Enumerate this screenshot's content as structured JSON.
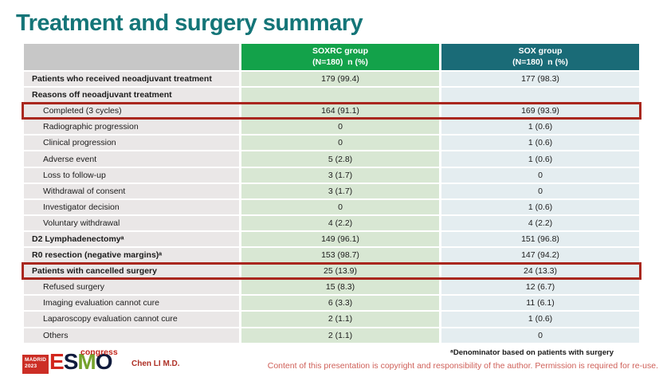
{
  "slide": {
    "title": "Treatment and surgery summary"
  },
  "colors": {
    "title_teal": "#147578",
    "header_green": "#13a24a",
    "header_teal": "#1a6b77",
    "soxrc_cell_green": "#d8e7d3",
    "sox_cell_blue": "#e4edf0",
    "highlight_red": "#a9271e",
    "copyright_red": "#cf6059"
  },
  "table": {
    "columns": [
      {
        "label": "SOXRC group",
        "sublabel": "(N=180)  n (%)"
      },
      {
        "label": "SOX group",
        "sublabel": "(N=180)  n (%)"
      }
    ],
    "rows": [
      {
        "label": "Patients who received neoadjuvant treatment",
        "soxrc": "179 (99.4)",
        "sox": "177 (98.3)",
        "bold": true,
        "indent": false,
        "highlight": false
      },
      {
        "label": "Reasons off neoadjuvant treatment",
        "soxrc": "",
        "sox": "",
        "bold": true,
        "indent": false,
        "highlight": false
      },
      {
        "label": "Completed (3 cycles)",
        "soxrc": "164 (91.1)",
        "sox": "169 (93.9)",
        "bold": false,
        "indent": true,
        "highlight": true
      },
      {
        "label": "Radiographic progression",
        "soxrc": "0",
        "sox": "1 (0.6)",
        "bold": false,
        "indent": true,
        "highlight": false
      },
      {
        "label": "Clinical progression",
        "soxrc": "0",
        "sox": "1 (0.6)",
        "bold": false,
        "indent": true,
        "highlight": false
      },
      {
        "label": "Adverse event",
        "soxrc": "5 (2.8)",
        "sox": "1 (0.6)",
        "bold": false,
        "indent": true,
        "highlight": false
      },
      {
        "label": "Loss to follow-up",
        "soxrc": "3 (1.7)",
        "sox": "0",
        "bold": false,
        "indent": true,
        "highlight": false
      },
      {
        "label": "Withdrawal of consent",
        "soxrc": "3 (1.7)",
        "sox": "0",
        "bold": false,
        "indent": true,
        "highlight": false
      },
      {
        "label": "Investigator decision",
        "soxrc": "0",
        "sox": "1 (0.6)",
        "bold": false,
        "indent": true,
        "highlight": false
      },
      {
        "label": "Voluntary withdrawal",
        "soxrc": "4 (2.2)",
        "sox": "4 (2.2)",
        "bold": false,
        "indent": true,
        "highlight": false
      },
      {
        "label": "D2 Lymphadenectomyᵃ",
        "soxrc": "149 (96.1)",
        "sox": "151 (96.8)",
        "bold": true,
        "indent": false,
        "highlight": false
      },
      {
        "label": "R0 resection (negative margins)ᵃ",
        "soxrc": "153 (98.7)",
        "sox": "147 (94.2)",
        "bold": true,
        "indent": false,
        "highlight": false
      },
      {
        "label": "Patients with cancelled surgery",
        "soxrc": "25 (13.9)",
        "sox": "24 (13.3)",
        "bold": true,
        "indent": false,
        "highlight": true
      },
      {
        "label": "Refused surgery",
        "soxrc": "15 (8.3)",
        "sox": "12 (6.7)",
        "bold": false,
        "indent": true,
        "highlight": false
      },
      {
        "label": "Imaging evaluation cannot cure",
        "soxrc": "6 (3.3)",
        "sox": "11 (6.1)",
        "bold": false,
        "indent": true,
        "highlight": false
      },
      {
        "label": "Laparoscopy evaluation cannot cure",
        "soxrc": "2 (1.1)",
        "sox": "1 (0.6)",
        "bold": false,
        "indent": true,
        "highlight": false
      },
      {
        "label": "Others",
        "soxrc": "2 (1.1)",
        "sox": "0",
        "bold": false,
        "indent": true,
        "highlight": false
      }
    ]
  },
  "footer": {
    "logo": {
      "city_line1": "MADRID",
      "city_line2": "2023",
      "letter_e": "E",
      "letter_s": "S",
      "letter_m": "M",
      "letter_o": "O",
      "congress": "congress"
    },
    "presenter": "Chen LI M.D.",
    "footnote": "ᵃDenominator based on patients with surgery",
    "copyright": "Content of this presentation is copyright and responsibility of the author. Permission is required for re-use."
  }
}
